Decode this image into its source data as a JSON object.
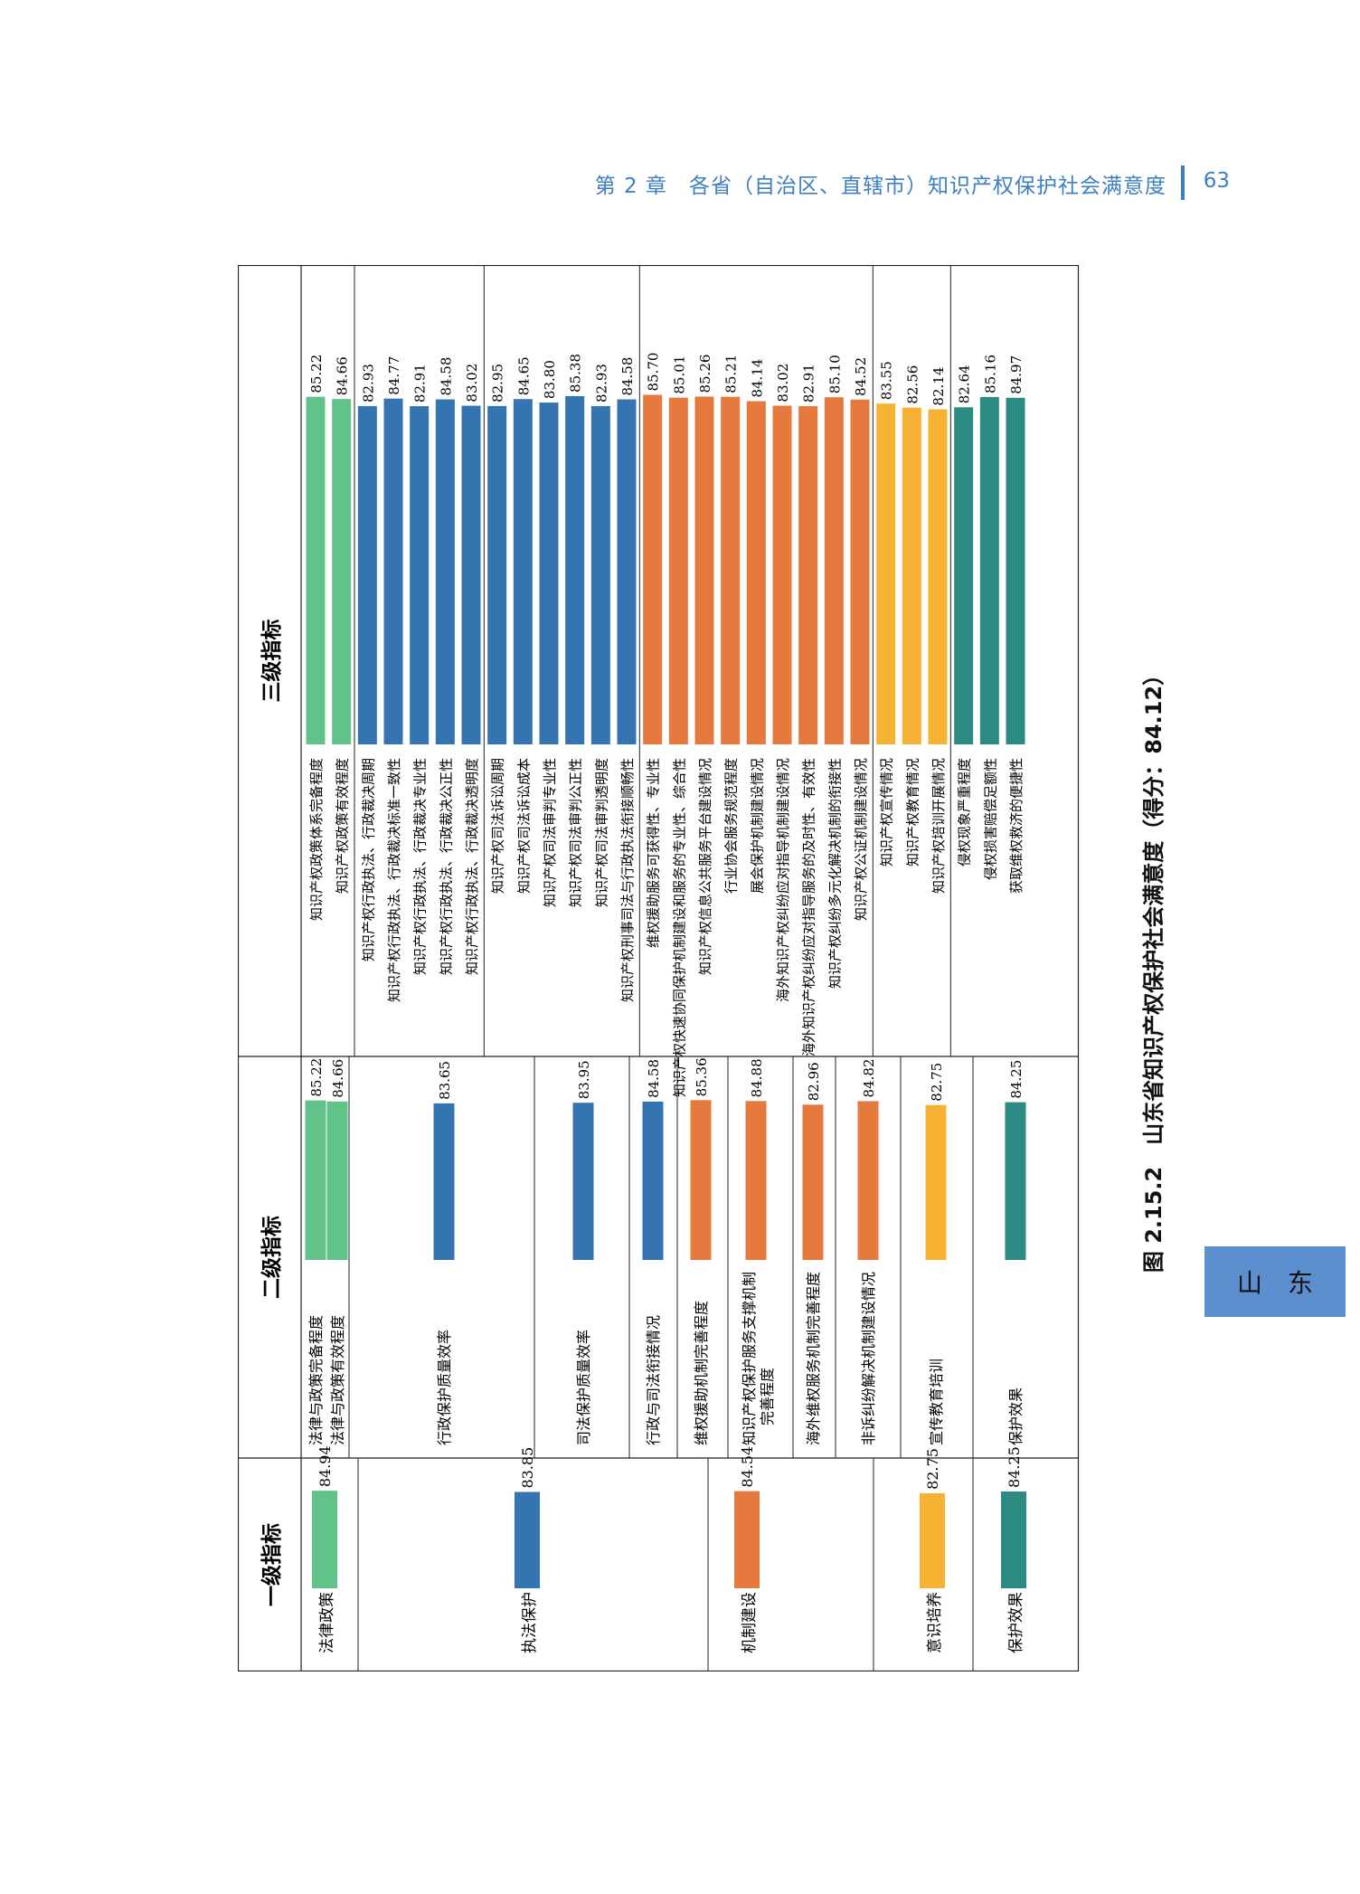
{
  "header": {
    "chapter": "第 2 章　各省（自治区、直辖市）知识产权保护社会满意度",
    "page": "63"
  },
  "tab": "山东",
  "colors": {
    "legal": "#62c38a",
    "exec": "#3474b0",
    "judicial": "#3474b0",
    "mech": "#e67a3e",
    "aware": "#f5b233",
    "effect": "#2b8a82"
  },
  "chart_data": {
    "type": "bar",
    "title": "图 2.15.2　山东省知识产权保护社会满意度（得分：84.12）",
    "ylim": [
      0,
      100
    ],
    "panels": [
      "一级指标",
      "二级指标",
      "三级指标"
    ],
    "level1": [
      {
        "label": "法律政策",
        "value": 84.94,
        "color": "legal"
      },
      {
        "label": "执法保护",
        "value": 83.85,
        "color": "exec"
      },
      {
        "label": "机制建设",
        "value": 84.54,
        "color": "mech"
      },
      {
        "label": "意识培养",
        "value": 82.75,
        "color": "aware"
      },
      {
        "label": "保护效果",
        "value": 84.25,
        "color": "effect"
      }
    ],
    "level2": [
      {
        "label": "法律与政策完备程度",
        "value": 85.22,
        "color": "legal"
      },
      {
        "label": "法律与政策有效程度",
        "value": 84.66,
        "color": "legal"
      },
      {
        "label": "行政保护质量效率",
        "value": 83.65,
        "color": "exec"
      },
      {
        "label": "司法保护质量效率",
        "value": 83.95,
        "color": "judicial"
      },
      {
        "label": "行政与司法衔接情况",
        "value": 84.58,
        "color": "judicial"
      },
      {
        "label": "维权援助机制完善程度",
        "value": 85.36,
        "color": "mech"
      },
      {
        "label": "知识产权保护服务支撑机制完善程度",
        "value": 84.88,
        "color": "mech"
      },
      {
        "label": "海外维权服务机制完善程度",
        "value": 82.96,
        "color": "mech"
      },
      {
        "label": "非诉纠纷解决机制建设情况",
        "value": 84.82,
        "color": "mech"
      },
      {
        "label": "宣传教育培训",
        "value": 82.75,
        "color": "aware"
      },
      {
        "label": "保护效果",
        "value": 84.25,
        "color": "effect"
      }
    ],
    "level3": [
      {
        "label": "知识产权政策体系完备程度",
        "value": 85.22,
        "color": "legal"
      },
      {
        "label": "知识产权政策有效程度",
        "value": 84.66,
        "color": "legal"
      },
      {
        "label": "知识产权行政执法、行政裁决周期",
        "value": 82.93,
        "color": "exec"
      },
      {
        "label": "知识产权行政执法、行政裁决标准一致性",
        "value": 84.77,
        "color": "exec"
      },
      {
        "label": "知识产权行政执法、行政裁决专业性",
        "value": 82.91,
        "color": "exec"
      },
      {
        "label": "知识产权行政执法、行政裁决公正性",
        "value": 84.58,
        "color": "exec"
      },
      {
        "label": "知识产权行政执法、行政裁决透明度",
        "value": 83.02,
        "color": "exec"
      },
      {
        "label": "知识产权司法诉讼周期",
        "value": 82.95,
        "color": "judicial"
      },
      {
        "label": "知识产权司法诉讼成本",
        "value": 84.65,
        "color": "judicial"
      },
      {
        "label": "知识产权司法审判专业性",
        "value": 83.8,
        "color": "judicial"
      },
      {
        "label": "知识产权司法审判公正性",
        "value": 85.38,
        "color": "judicial"
      },
      {
        "label": "知识产权司法审判透明度",
        "value": 82.93,
        "color": "judicial"
      },
      {
        "label": "知识产权刑事司法与行政执法衔接顺畅性",
        "value": 84.58,
        "color": "judicial"
      },
      {
        "label": "维权援助服务可获得性、专业性",
        "value": 85.7,
        "color": "mech"
      },
      {
        "label": "知识产权快速协同保护机制建设和服务的专业性、综合性",
        "value": 85.01,
        "color": "mech"
      },
      {
        "label": "知识产权信息公共服务平台建设情况",
        "value": 85.26,
        "color": "mech"
      },
      {
        "label": "行业协会服务规范程度",
        "value": 85.21,
        "color": "mech"
      },
      {
        "label": "展会保护机制建设情况",
        "value": 84.14,
        "color": "mech"
      },
      {
        "label": "海外知识产权纠纷应对指导机制建设情况",
        "value": 83.02,
        "color": "mech"
      },
      {
        "label": "海外知识产权纠纷应对指导服务的及时性、有效性",
        "value": 82.91,
        "color": "mech"
      },
      {
        "label": "知识产权纠纷多元化解决机制的衔接性",
        "value": 85.1,
        "color": "mech"
      },
      {
        "label": "知识产权公证机制建设情况",
        "value": 84.52,
        "color": "mech"
      },
      {
        "label": "知识产权宣传情况",
        "value": 83.55,
        "color": "aware"
      },
      {
        "label": "知识产权教育情况",
        "value": 82.56,
        "color": "aware"
      },
      {
        "label": "知识产权培训开展情况",
        "value": 82.14,
        "color": "aware"
      },
      {
        "label": "侵权现象严重程度",
        "value": 82.64,
        "color": "effect"
      },
      {
        "label": "侵权损害赔偿足额性",
        "value": 85.16,
        "color": "effect"
      },
      {
        "label": "获取维权救济的便捷性",
        "value": 84.97,
        "color": "effect"
      }
    ]
  }
}
